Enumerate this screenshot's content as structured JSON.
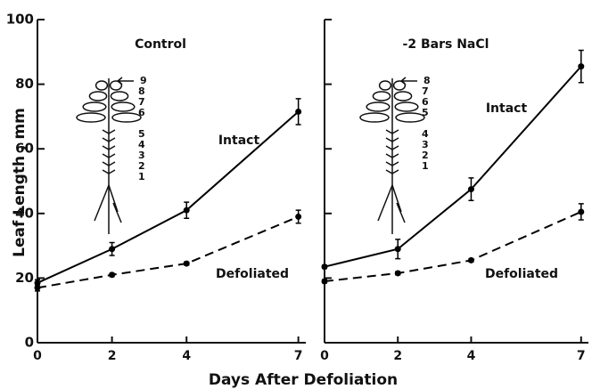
{
  "chart_data": [
    {
      "type": "line",
      "title": "Control",
      "ylabel": "Leaf Length , mm",
      "xlabel": "Days After Defoliation",
      "xlim": [
        0,
        7.2
      ],
      "xticks": [
        0,
        2,
        4,
        7
      ],
      "ylim": [
        0,
        100
      ],
      "yticks": [
        0,
        20,
        40,
        60,
        80,
        100
      ],
      "leaf_numbers": [
        "9",
        "8",
        "7",
        "6",
        "5",
        "4",
        "3",
        "2",
        "1"
      ],
      "x": [
        0,
        2,
        4,
        7
      ],
      "series": [
        {
          "name": "Intact",
          "color": "#000000",
          "linestyle": "solid",
          "values": [
            18.5,
            29,
            41,
            71.5
          ],
          "errors": [
            1,
            2,
            2.5,
            4
          ]
        },
        {
          "name": "Defoliated",
          "color": "#000000",
          "linestyle": "dashed",
          "values": [
            17,
            21,
            24.5,
            39
          ],
          "errors": [
            1,
            0.5,
            0.5,
            2
          ]
        }
      ]
    },
    {
      "type": "line",
      "title": "-2 Bars NaCl",
      "xlim": [
        0,
        7.2
      ],
      "xticks": [
        0,
        2,
        4,
        7
      ],
      "ylim": [
        0,
        100
      ],
      "yticks": [
        0,
        20,
        40,
        60,
        80,
        100
      ],
      "leaf_numbers": [
        "8",
        "7",
        "6",
        "5",
        "4",
        "3",
        "2",
        "1"
      ],
      "x": [
        0,
        2,
        4,
        7
      ],
      "series": [
        {
          "name": "Intact",
          "color": "#000000",
          "linestyle": "solid",
          "values": [
            23.5,
            29,
            47.5,
            85.5
          ],
          "errors": [
            0.5,
            3,
            3.5,
            5
          ]
        },
        {
          "name": "Defoliated",
          "color": "#000000",
          "linestyle": "dashed",
          "values": [
            19,
            21.5,
            25.5,
            40.5
          ],
          "errors": [
            0.5,
            0.5,
            0.5,
            2.5
          ]
        }
      ]
    }
  ]
}
